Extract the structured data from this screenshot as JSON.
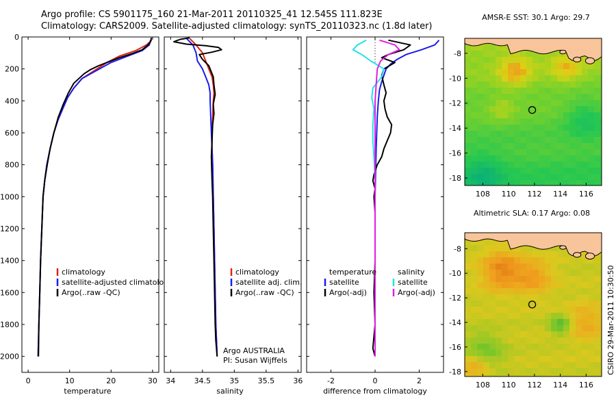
{
  "header": {
    "line1": "Argo profile: CS 5901175_160 21-Mar-2011 20110325_41 12.545S 111.823E",
    "line2": "Climatology: CARS2009. Satellite-adjusted climatology: synTS_20110323.nc (1.8d later)"
  },
  "side_label": "CSIRO 29-Mar-2011 10:30:50",
  "colors": {
    "climatology": "#dd2211",
    "satellite": "#1a1aee",
    "argo": "#000000",
    "sal_satellite": "#22e0e8",
    "sal_argo": "#e020e0",
    "land": "#f8c49a"
  },
  "chart_data": [
    {
      "type": "line",
      "xlabel": "temperature",
      "ylabel": "",
      "xlim": [
        -1.5,
        31.5
      ],
      "ylim": [
        2100,
        0
      ],
      "xticks": [
        0,
        10,
        20,
        30
      ],
      "yticks": [
        0,
        200,
        400,
        600,
        800,
        1000,
        1200,
        1400,
        1600,
        1800,
        2000
      ],
      "legend": [
        "climatology",
        "satellite-adjusted climatology",
        "Argo(..raw -QC)"
      ],
      "series": [
        {
          "name": "climatology",
          "color_key": "climatology",
          "x": [
            29.8,
            28.5,
            26,
            22,
            19,
            16,
            13,
            11,
            9.5,
            8.5,
            7.2,
            6.2,
            5.3,
            4.5,
            4,
            3.6,
            3.3,
            3.0,
            2.8,
            2.6,
            2.4
          ],
          "y": [
            20,
            50,
            85,
            120,
            160,
            210,
            260,
            320,
            380,
            440,
            520,
            600,
            700,
            800,
            900,
            1000,
            1200,
            1400,
            1600,
            1800,
            2000
          ]
        },
        {
          "name": "satellite-adjusted climatology",
          "color_key": "satellite",
          "x": [
            29.5,
            29.2,
            27.5,
            24,
            20,
            16.5,
            13,
            11,
            9.5,
            8.5,
            7.2,
            6.2,
            5.3,
            4.5,
            4,
            3.6,
            3.3,
            3.0,
            2.8,
            2.6,
            2.4
          ],
          "y": [
            20,
            50,
            85,
            120,
            160,
            210,
            260,
            320,
            380,
            440,
            520,
            600,
            700,
            800,
            900,
            1000,
            1200,
            1400,
            1600,
            1800,
            2000
          ]
        },
        {
          "name": "Argo(..raw -QC)",
          "color_key": "argo",
          "x": [
            29.7,
            29.6,
            29.4,
            28.9,
            28.2,
            27.5,
            25,
            22,
            19,
            17,
            15,
            13.5,
            11,
            9.7,
            8.5,
            7.3,
            6.2,
            5.3,
            4.6,
            4.0,
            3.6,
            3.3,
            3.0,
            2.8,
            2.6,
            2.5
          ],
          "y": [
            5,
            20,
            35,
            50,
            65,
            80,
            105,
            130,
            160,
            180,
            205,
            230,
            290,
            350,
            420,
            500,
            600,
            700,
            800,
            900,
            1000,
            1200,
            1400,
            1600,
            1800,
            2000
          ]
        }
      ]
    },
    {
      "type": "line",
      "xlabel": "salinity",
      "ylabel": "",
      "xlim": [
        33.9,
        36.05
      ],
      "ylim": [
        2100,
        0
      ],
      "xticks": [
        34,
        34.5,
        35,
        35.5,
        36
      ],
      "yticks": [
        0,
        200,
        400,
        600,
        800,
        1000,
        1200,
        1400,
        1600,
        1800,
        2000
      ],
      "legend": [
        "climatology",
        "satellite adj. clim.",
        "Argo(..raw -QC)"
      ],
      "annotations": [
        "Argo AUSTRALIA",
        "PI: Susan Wijffels"
      ],
      "series": [
        {
          "name": "climatology",
          "color_key": "climatology",
          "x": [
            34.3,
            34.4,
            34.5,
            34.55,
            34.6,
            34.65,
            34.67,
            34.68,
            34.67,
            34.66,
            34.65,
            34.65,
            34.66,
            34.67,
            34.68,
            34.69,
            34.7,
            34.71,
            34.72,
            34.73
          ],
          "y": [
            10,
            50,
            100,
            150,
            200,
            250,
            300,
            350,
            400,
            500,
            600,
            700,
            800,
            1000,
            1200,
            1400,
            1600,
            1800,
            1900,
            2000
          ]
        },
        {
          "name": "satellite adj. clim.",
          "color_key": "satellite",
          "x": [
            34.25,
            34.35,
            34.4,
            34.42,
            34.5,
            34.55,
            34.6,
            34.62,
            34.62,
            34.63,
            34.64,
            34.65,
            34.66,
            34.67,
            34.68,
            34.69,
            34.7,
            34.71,
            34.72,
            34.73
          ],
          "y": [
            10,
            50,
            100,
            150,
            200,
            250,
            300,
            350,
            400,
            500,
            600,
            700,
            800,
            1000,
            1200,
            1400,
            1600,
            1800,
            1900,
            2000
          ]
        },
        {
          "name": "Argo(..raw -QC)",
          "color_key": "argo",
          "x": [
            34.3,
            34.15,
            34.05,
            34.25,
            34.55,
            34.75,
            34.8,
            34.65,
            34.45,
            34.5,
            34.6,
            34.67,
            34.68,
            34.7,
            34.67,
            34.68,
            34.66,
            34.65,
            34.64,
            34.65,
            34.66,
            34.67,
            34.68,
            34.69,
            34.7,
            34.71,
            34.72,
            34.73
          ],
          "y": [
            5,
            15,
            30,
            45,
            55,
            65,
            80,
            95,
            110,
            140,
            180,
            250,
            300,
            360,
            420,
            480,
            550,
            650,
            750,
            900,
            1000,
            1200,
            1400,
            1600,
            1800,
            1900,
            1950,
            2000
          ]
        }
      ]
    },
    {
      "type": "line",
      "xlabel": "difference from climatology",
      "ylabel": "",
      "xlim": [
        -3.1,
        3.1
      ],
      "ylim": [
        2100,
        0
      ],
      "xticks": [
        -2,
        0,
        2
      ],
      "yticks": [
        0,
        200,
        400,
        600,
        800,
        1000,
        1200,
        1400,
        1600,
        1800,
        2000
      ],
      "legend_left": [
        "temperature",
        "satellite",
        "Argo(-adj)"
      ],
      "legend_right": [
        "salinity",
        "satellite",
        "Argo(-adj)"
      ],
      "series": [
        {
          "name": "temperature satellite",
          "color_key": "satellite",
          "x": [
            2.9,
            2.7,
            2.1,
            1.4,
            1.0,
            0.7,
            0.5,
            0.4,
            0.3,
            0.2,
            0.15,
            0.1,
            0.05,
            0.0,
            0.0,
            0.0,
            0.0
          ],
          "y": [
            20,
            50,
            80,
            110,
            140,
            170,
            200,
            240,
            280,
            330,
            400,
            500,
            700,
            1000,
            1400,
            1800,
            2000
          ]
        },
        {
          "name": "temperature Argo(-adj)",
          "color_key": "argo",
          "x": [
            0.6,
            1.6,
            1.3,
            0.6,
            0.3,
            0.9,
            0.4,
            0.3,
            0.4,
            0.5,
            0.4,
            0.45,
            0.55,
            0.75,
            0.7,
            0.55,
            0.4,
            0.3,
            0.1,
            -0.05,
            -0.1,
            0.0,
            -0.05,
            0.0,
            0.0,
            0.0,
            -0.05,
            0.0,
            -0.1,
            0.0
          ],
          "y": [
            20,
            50,
            80,
            110,
            130,
            160,
            200,
            240,
            300,
            350,
            400,
            450,
            500,
            550,
            600,
            650,
            700,
            750,
            800,
            860,
            900,
            950,
            1000,
            1100,
            1200,
            1400,
            1600,
            1800,
            1950,
            2000
          ]
        },
        {
          "name": "salinity satellite",
          "color_key": "sal_satellite",
          "x": [
            -0.4,
            -0.8,
            -1.0,
            -0.6,
            -0.2,
            0.4,
            0.3,
            -0.1,
            -0.15,
            -0.05,
            -0.1,
            -0.1,
            -0.05,
            0.0,
            0.0,
            0.0,
            0.0
          ],
          "y": [
            20,
            50,
            80,
            110,
            150,
            200,
            250,
            320,
            380,
            450,
            550,
            650,
            750,
            900,
            1200,
            1600,
            2000
          ]
        },
        {
          "name": "salinity Argo(-adj)",
          "color_key": "sal_argo",
          "x": [
            0.2,
            0.9,
            1.1,
            0.6,
            0.25,
            0.1,
            0.05,
            0.0,
            0.0,
            0.0,
            0.0
          ],
          "y": [
            20,
            50,
            80,
            110,
            150,
            200,
            300,
            400,
            600,
            1000,
            2000
          ]
        }
      ]
    },
    {
      "type": "heatmap",
      "title": "AMSR-E SST: 30.1 Argo: 29.7",
      "xlim": [
        106.6,
        117.2
      ],
      "ylim": [
        -18.6,
        -6.8
      ],
      "xticks": [
        108,
        110,
        112,
        114,
        116
      ],
      "yticks": [
        -8,
        -10,
        -12,
        -14,
        -16,
        -18
      ],
      "marker": {
        "lon": 111.823,
        "lat": -12.545
      }
    },
    {
      "type": "heatmap",
      "title": "Altimetric SLA: 0.17 Argo: 0.08",
      "xlim": [
        106.6,
        117.2
      ],
      "ylim": [
        -18.4,
        -6.7
      ],
      "xticks": [
        108,
        110,
        112,
        114,
        116
      ],
      "yticks": [
        -8,
        -10,
        -12,
        -14,
        -16,
        -18
      ],
      "marker": {
        "lon": 111.823,
        "lat": -12.545
      }
    }
  ]
}
